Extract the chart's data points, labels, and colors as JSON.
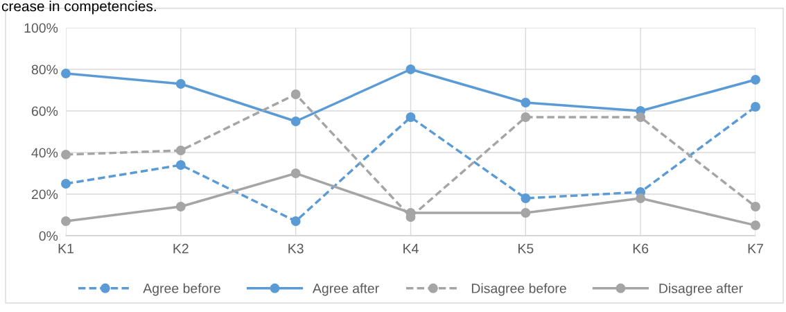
{
  "chart_data": {
    "type": "line",
    "title": "crease in competencies.",
    "categories": [
      "K1",
      "K2",
      "K3",
      "K4",
      "K5",
      "K6",
      "K7"
    ],
    "series": [
      {
        "name": "Agree before",
        "color": "#5b9bd5",
        "line_style": "dashed",
        "values": [
          25,
          34,
          7,
          57,
          18,
          21,
          62
        ]
      },
      {
        "name": "Agree after",
        "color": "#5b9bd5",
        "line_style": "solid",
        "values": [
          78,
          73,
          55,
          80,
          64,
          60,
          75
        ]
      },
      {
        "name": "Disagree before",
        "color": "#a5a5a5",
        "line_style": "dashed",
        "values": [
          39,
          41,
          68,
          9,
          57,
          57,
          14
        ]
      },
      {
        "name": "Disagree after",
        "color": "#a5a5a5",
        "line_style": "solid",
        "values": [
          7,
          14,
          30,
          11,
          11,
          18,
          5
        ]
      }
    ],
    "ylim": [
      0,
      100
    ],
    "yticks": [
      {
        "value": 0,
        "label": "0%"
      },
      {
        "value": 20,
        "label": "20%"
      },
      {
        "value": 40,
        "label": "40%"
      },
      {
        "value": 60,
        "label": "60%"
      },
      {
        "value": 80,
        "label": "80%"
      },
      {
        "value": 100,
        "label": "100%"
      }
    ],
    "grid": true,
    "marker": "circle",
    "legend": "bottom"
  }
}
